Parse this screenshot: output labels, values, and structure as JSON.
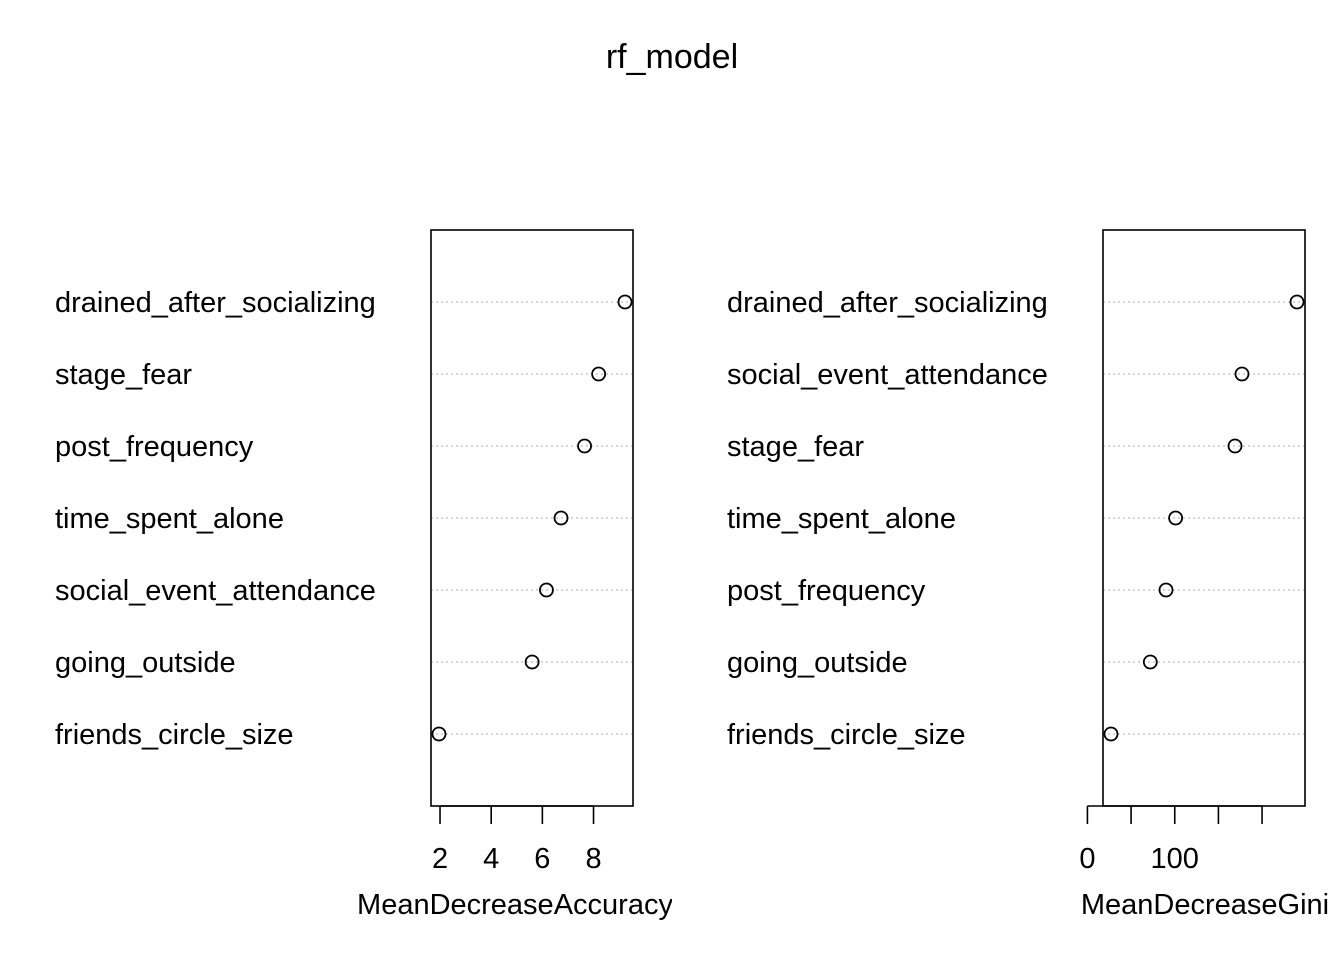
{
  "chart_data": {
    "type": "scatter",
    "title": "rf_model",
    "panels": [
      {
        "xlabel": "MeanDecreaseAccuracy",
        "xlim": [
          1.96,
          9.23
        ],
        "xticks": [
          2,
          4,
          6,
          8
        ],
        "grid": true,
        "categories": [
          "drained_after_socializing",
          "stage_fear",
          "post_frequency",
          "time_spent_alone",
          "social_event_attendance",
          "going_outside",
          "friends_circle_size"
        ],
        "values": [
          9.23,
          8.2,
          7.65,
          6.73,
          6.16,
          5.6,
          1.96
        ]
      },
      {
        "xlabel": "MeanDecreaseGini",
        "xlim": [
          27,
          240
        ],
        "xticks": [
          0,
          50,
          100,
          150,
          200
        ],
        "xtick_labels": [
          "0",
          "",
          "100",
          "",
          ""
        ],
        "grid": true,
        "categories": [
          "drained_after_socializing",
          "social_event_attendance",
          "stage_fear",
          "time_spent_alone",
          "post_frequency",
          "going_outside",
          "friends_circle_size"
        ],
        "values": [
          240,
          177,
          169,
          101,
          90,
          72,
          27
        ]
      }
    ]
  }
}
